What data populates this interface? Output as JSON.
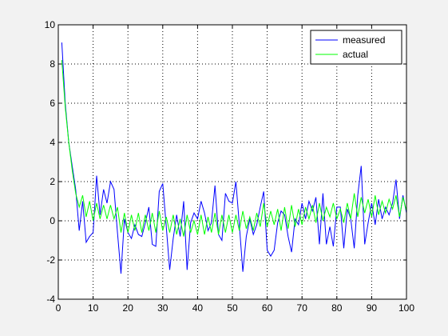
{
  "chart_data": {
    "type": "line",
    "title": "",
    "xlabel": "",
    "ylabel": "",
    "xlim": [
      0,
      100
    ],
    "ylim": [
      -4,
      10
    ],
    "xticks": [
      0,
      10,
      20,
      30,
      40,
      50,
      60,
      70,
      80,
      90,
      100
    ],
    "yticks": [
      -4,
      -2,
      0,
      2,
      4,
      6,
      8,
      10
    ],
    "grid": true,
    "legend_position": "top-right",
    "series": [
      {
        "name": "measured",
        "color": "#0000ff",
        "x": [
          1,
          2,
          3,
          4,
          5,
          6,
          7,
          8,
          9,
          10,
          11,
          12,
          13,
          14,
          15,
          16,
          17,
          18,
          19,
          20,
          21,
          22,
          23,
          24,
          25,
          26,
          27,
          28,
          29,
          30,
          31,
          32,
          33,
          34,
          35,
          36,
          37,
          38,
          39,
          40,
          41,
          42,
          43,
          44,
          45,
          46,
          47,
          48,
          49,
          50,
          51,
          52,
          53,
          54,
          55,
          56,
          57,
          58,
          59,
          60,
          61,
          62,
          63,
          64,
          65,
          66,
          67,
          68,
          69,
          70,
          71,
          72,
          73,
          74,
          75,
          76,
          77,
          78,
          79,
          80,
          81,
          82,
          83,
          84,
          85,
          86,
          87,
          88,
          89,
          90,
          91,
          92,
          93,
          94,
          95,
          96,
          97,
          98,
          99,
          100
        ],
        "values": [
          9.1,
          6.0,
          4.0,
          2.8,
          1.6,
          -0.5,
          1.0,
          -1.1,
          -0.8,
          -0.6,
          2.3,
          0.3,
          1.6,
          0.9,
          2.0,
          1.6,
          -0.6,
          -2.7,
          0.1,
          -0.6,
          -0.9,
          -0.2,
          -0.7,
          -0.8,
          -0.1,
          0.7,
          -1.2,
          -1.3,
          1.5,
          1.9,
          -0.3,
          -2.5,
          -0.9,
          0.3,
          -0.8,
          1.0,
          -2.5,
          -0.1,
          0.4,
          0.1,
          1.0,
          0.4,
          -0.5,
          -0.1,
          1.8,
          -0.7,
          -1.0,
          1.4,
          1.0,
          0.9,
          2.0,
          -0.2,
          -2.6,
          -0.8,
          0.1,
          -0.7,
          -0.2,
          0.7,
          1.5,
          -1.5,
          -1.8,
          -1.5,
          -0.1,
          0.5,
          0.3,
          -0.8,
          -1.6,
          0.1,
          -0.2,
          0.9,
          0.1,
          1.0,
          0.5,
          1.2,
          -1.2,
          1.4,
          -1.2,
          -0.3,
          -1.3,
          0.7,
          0.7,
          -1.4,
          0.6,
          0.1,
          -1.4,
          1.3,
          2.8,
          -1.2,
          -0.1,
          0.9,
          -0.2,
          1.1,
          0.1,
          0.7,
          0.3,
          0.9,
          2.1,
          0.1,
          1.3,
          0.4
        ]
      },
      {
        "name": "actual",
        "color": "#00ff00",
        "x": [
          1,
          2,
          3,
          4,
          5,
          6,
          7,
          8,
          9,
          10,
          11,
          12,
          13,
          14,
          15,
          16,
          17,
          18,
          19,
          20,
          21,
          22,
          23,
          24,
          25,
          26,
          27,
          28,
          29,
          30,
          31,
          32,
          33,
          34,
          35,
          36,
          37,
          38,
          39,
          40,
          41,
          42,
          43,
          44,
          45,
          46,
          47,
          48,
          49,
          50,
          51,
          52,
          53,
          54,
          55,
          56,
          57,
          58,
          59,
          60,
          61,
          62,
          63,
          64,
          65,
          66,
          67,
          68,
          69,
          70,
          71,
          72,
          73,
          74,
          75,
          76,
          77,
          78,
          79,
          80,
          81,
          82,
          83,
          84,
          85,
          86,
          87,
          88,
          89,
          90,
          91,
          92,
          93,
          94,
          95,
          96,
          97,
          98,
          99,
          100
        ],
        "values": [
          8.2,
          5.8,
          4.0,
          2.6,
          1.4,
          0.7,
          1.3,
          0.2,
          1.0,
          0.0,
          0.9,
          0.1,
          0.8,
          0.1,
          0.8,
          0.1,
          0.7,
          -0.6,
          0.4,
          -0.6,
          0.3,
          -0.5,
          0.4,
          -0.6,
          0.3,
          -0.5,
          0.4,
          -0.6,
          0.5,
          -0.5,
          0.2,
          -0.6,
          0.3,
          -0.7,
          0.1,
          -0.8,
          0.3,
          -0.6,
          0.0,
          -0.7,
          0.3,
          -0.7,
          0.2,
          -0.6,
          0.4,
          -0.7,
          0.3,
          -0.6,
          0.3,
          -0.6,
          0.3,
          -0.5,
          0.5,
          -0.4,
          0.2,
          -0.5,
          0.4,
          -0.3,
          0.9,
          -0.3,
          0.5,
          -0.2,
          0.6,
          -0.5,
          0.7,
          -0.4,
          0.8,
          -0.3,
          0.6,
          -0.2,
          0.7,
          0.1,
          0.8,
          -0.1,
          0.9,
          0.0,
          0.7,
          0.2,
          0.9,
          0.1,
          0.6,
          -0.1,
          0.9,
          0.1,
          1.4,
          0.2,
          1.2,
          0.4,
          1.1,
          0.2,
          1.3,
          0.3,
          1.0,
          0.4,
          1.1,
          0.6,
          1.3,
          0.2,
          1.2,
          0.5
        ]
      }
    ]
  }
}
